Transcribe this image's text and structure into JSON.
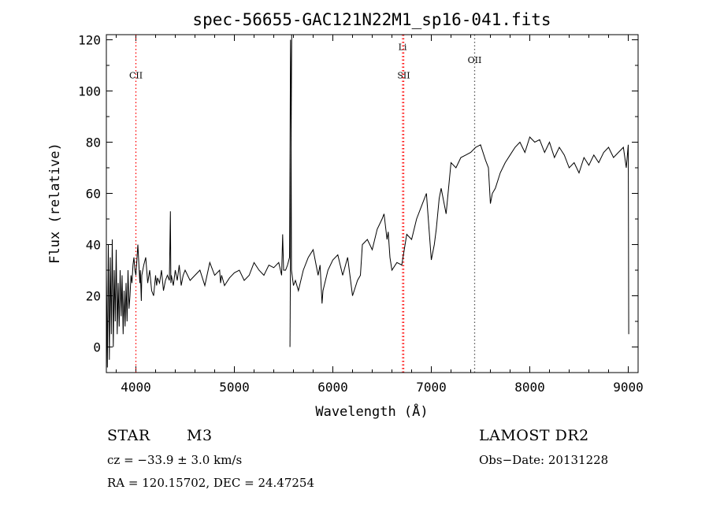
{
  "chart_data": {
    "type": "line",
    "title": "spec-56655-GAC121N22M1_sp16-041.fits",
    "xlabel": "Wavelength (Å)",
    "ylabel": "Flux (relative)",
    "xlim": [
      3700,
      9100
    ],
    "ylim": [
      -10,
      122
    ],
    "xticks": [
      4000,
      5000,
      6000,
      7000,
      8000,
      9000
    ],
    "yticks": [
      0,
      20,
      40,
      60,
      80,
      100,
      120
    ],
    "grid": false,
    "series": [
      {
        "x": [
          3700,
          3710,
          3720,
          3730,
          3740,
          3750,
          3760,
          3770,
          3780,
          3790,
          3800,
          3810,
          3820,
          3830,
          3840,
          3850,
          3860,
          3870,
          3880,
          3890,
          3900,
          3910,
          3920,
          3930,
          3940,
          3950,
          3960,
          3970,
          3980,
          3990,
          4000,
          4020,
          4040,
          4045,
          4055,
          4060,
          4080,
          4100,
          4120,
          4140,
          4160,
          4180,
          4200,
          4210,
          4220,
          4240,
          4260,
          4280,
          4300,
          4320,
          4340,
          4350,
          4355,
          4360,
          4380,
          4400,
          4420,
          4440,
          4460,
          4480,
          4500,
          4550,
          4600,
          4650,
          4700,
          4750,
          4800,
          4850,
          4860,
          4870,
          4900,
          4950,
          5000,
          5050,
          5100,
          5150,
          5200,
          5250,
          5300,
          5350,
          5400,
          5450,
          5480,
          5490,
          5500,
          5520,
          5540,
          5560,
          5570,
          5575,
          5580,
          5600,
          5620,
          5650,
          5700,
          5750,
          5800,
          5850,
          5870,
          5890,
          5900,
          5950,
          6000,
          6050,
          6100,
          6150,
          6200,
          6250,
          6280,
          6300,
          6350,
          6400,
          6450,
          6500,
          6520,
          6550,
          6562,
          6580,
          6600,
          6650,
          6700,
          6750,
          6800,
          6850,
          6900,
          6950,
          7000,
          7030,
          7050,
          7080,
          7100,
          7150,
          7200,
          7250,
          7300,
          7350,
          7400,
          7450,
          7500,
          7550,
          7580,
          7600,
          7620,
          7650,
          7700,
          7750,
          7800,
          7850,
          7900,
          7950,
          8000,
          8050,
          8100,
          8150,
          8200,
          8250,
          8300,
          8350,
          8400,
          8450,
          8500,
          8550,
          8600,
          8650,
          8700,
          8750,
          8800,
          8850,
          8900,
          8950,
          8980,
          9000,
          9005
        ],
        "y": [
          30,
          -8,
          40,
          -5,
          35,
          5,
          42,
          0,
          30,
          10,
          38,
          5,
          25,
          8,
          30,
          12,
          28,
          5,
          22,
          8,
          25,
          10,
          30,
          15,
          20,
          28,
          25,
          32,
          35,
          30,
          28,
          40,
          25,
          30,
          18,
          28,
          32,
          35,
          25,
          30,
          22,
          20,
          28,
          24,
          27,
          25,
          30,
          22,
          26,
          28,
          26,
          53,
          25,
          28,
          24,
          30,
          26,
          32,
          24,
          28,
          30,
          26,
          28,
          30,
          24,
          33,
          28,
          30,
          25,
          28,
          24,
          27,
          29,
          30,
          26,
          28,
          33,
          30,
          28,
          32,
          31,
          33,
          28,
          44,
          30,
          30,
          32,
          35,
          120,
          95,
          30,
          24,
          26,
          22,
          30,
          35,
          38,
          28,
          32,
          17,
          22,
          30,
          34,
          36,
          28,
          35,
          20,
          26,
          28,
          40,
          42,
          38,
          46,
          50,
          52,
          42,
          45,
          35,
          30,
          33,
          32,
          44,
          42,
          50,
          55,
          60,
          34,
          40,
          46,
          58,
          62,
          52,
          72,
          70,
          74,
          75,
          76,
          78,
          79,
          73,
          70,
          56,
          60,
          62,
          68,
          72,
          75,
          78,
          80,
          76,
          82,
          80,
          81,
          76,
          80,
          74,
          78,
          75,
          70,
          72,
          68,
          74,
          71,
          75,
          72,
          76,
          78,
          74,
          76,
          78,
          70,
          79,
          5
        ]
      },
      {
        "x": [
          5565,
          5582
        ],
        "y": [
          0,
          122
        ]
      }
    ],
    "line_markers": [
      {
        "label": "CII",
        "x": 4000,
        "label_y": 105
      },
      {
        "label": "Li",
        "x": 6708,
        "label_y": 116
      },
      {
        "label": "SII",
        "x": 6720,
        "label_y": 105
      },
      {
        "label": "OII",
        "x": 7440,
        "label_y": 111
      }
    ]
  },
  "info": {
    "class_label": "STAR",
    "subclass": "M3",
    "survey": "LAMOST DR2",
    "cz": "cz = −33.9 ± 3.0 km/s",
    "obs_date": "Obs−Date: 20131228",
    "coords": "RA = 120.15702, DEC =  24.47254"
  },
  "colors": {
    "spectrum": "#000000",
    "marker": "#ff0000",
    "marker_oii": "#555555"
  }
}
